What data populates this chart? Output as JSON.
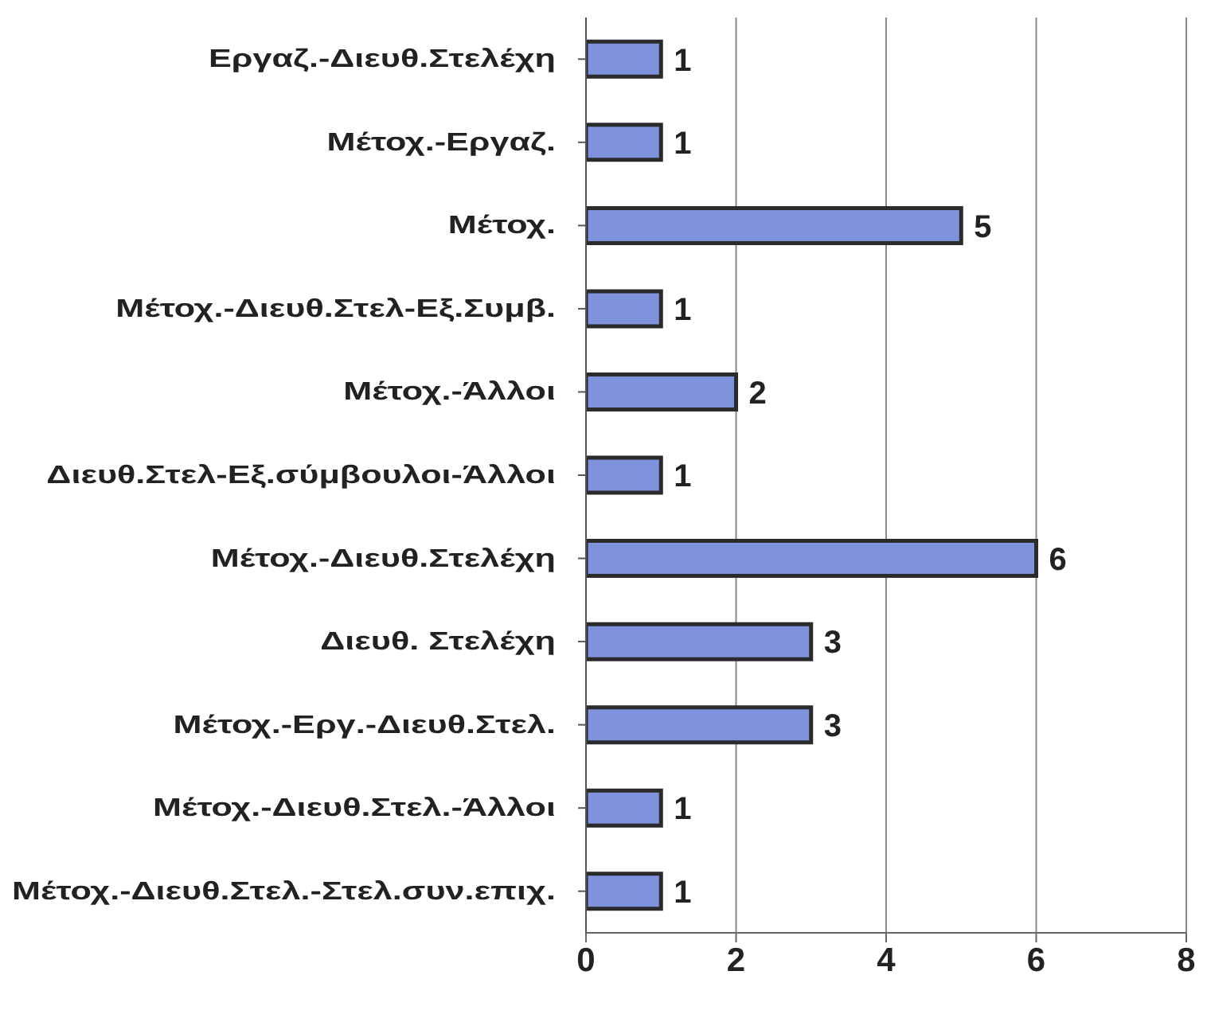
{
  "chart_data": {
    "type": "bar",
    "orientation": "horizontal",
    "categories": [
      "Εργαζ.-Διευθ.Στελέχη",
      "Μέτοχ.-Εργαζ.",
      "Μέτοχ.",
      "Μέτοχ.-Διευθ.Στελ-Εξ.Συμβ.",
      "Μέτοχ.-Άλλοι",
      "Διευθ.Στελ-Εξ.σύμβουλοι-Άλλοι",
      "Μέτοχ.-Διευθ.Στελέχη",
      "Διευθ. Στελέχη",
      "Μέτοχ.-Εργ.-Διευθ.Στελ.",
      "Μέτοχ.-Διευθ.Στελ.-Άλλοι",
      "Μέτοχ.-Διευθ.Στελ.-Στελ.συν.επιχ."
    ],
    "values": [
      1,
      1,
      5,
      1,
      2,
      1,
      6,
      3,
      3,
      1,
      1
    ],
    "color": "#7f93dd",
    "xlim": [
      0,
      8
    ],
    "xticks": [
      0,
      2,
      4,
      6,
      8
    ],
    "grid": "x",
    "data_labels": true
  }
}
